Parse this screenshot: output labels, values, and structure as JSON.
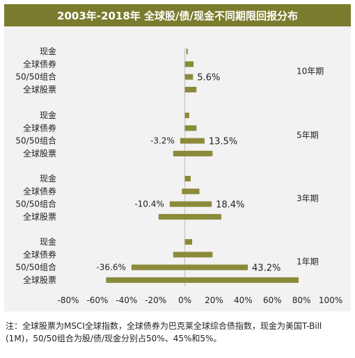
{
  "title": "2003年-2018年 全球股/债/现金不同期限回报分布",
  "note": "注：全球股票为MSCI全球指数，全球债券为巴克莱全球综合债指数，现金为美国T-Bill (1M)，50/50组合为股/债/现金分别占50%、45%和5%。",
  "colors": {
    "bar": "#8a8a3a",
    "title_bg": "#7b7b2e",
    "panel_bg": "#f2f2f2"
  },
  "chart_data": {
    "type": "bar",
    "orientation": "horizontal (floating ranges, min to max)",
    "title": "2003年-2018年 全球股/债/现金不同期限回报分布",
    "xlim": [
      -0.8,
      1.0
    ],
    "x_ticks": [
      "-80%",
      "-60%",
      "-40%",
      "-20%",
      "0%",
      "20%",
      "40%",
      "60%",
      "80%",
      "100%"
    ],
    "grid": false,
    "groups": [
      {
        "label": "10年期",
        "categories": [
          "现金",
          "全球债券",
          "50/50组合",
          "全球股票"
        ],
        "ranges": [
          [
            0.01,
            0.02
          ],
          [
            0.0,
            0.06
          ],
          [
            0.0,
            0.056
          ],
          [
            0.0,
            0.08
          ]
        ],
        "annotations": [
          {
            "category": "50/50组合",
            "side": "right",
            "text": "5.6%"
          }
        ]
      },
      {
        "label": "5年期",
        "categories": [
          "现金",
          "全球债券",
          "50/50组合",
          "全球股票"
        ],
        "ranges": [
          [
            0.0,
            0.03
          ],
          [
            0.0,
            0.08
          ],
          [
            -0.032,
            0.135
          ],
          [
            -0.08,
            0.19
          ]
        ],
        "annotations": [
          {
            "category": "50/50组合",
            "side": "left",
            "text": "-3.2%"
          },
          {
            "category": "50/50组合",
            "side": "right",
            "text": "13.5%"
          }
        ]
      },
      {
        "label": "3年期",
        "categories": [
          "现金",
          "全球债券",
          "50/50组合",
          "全球股票"
        ],
        "ranges": [
          [
            0.0,
            0.04
          ],
          [
            -0.02,
            0.1
          ],
          [
            -0.104,
            0.184
          ],
          [
            -0.18,
            0.25
          ]
        ],
        "annotations": [
          {
            "category": "50/50组合",
            "side": "left",
            "text": "-10.4%"
          },
          {
            "category": "50/50组合",
            "side": "right",
            "text": "18.4%"
          }
        ]
      },
      {
        "label": "1年期",
        "categories": [
          "现金",
          "全球债券",
          "50/50组合",
          "全球股票"
        ],
        "ranges": [
          [
            0.0,
            0.05
          ],
          [
            -0.08,
            0.19
          ],
          [
            -0.366,
            0.432
          ],
          [
            -0.54,
            0.78
          ]
        ],
        "annotations": [
          {
            "category": "50/50组合",
            "side": "left",
            "text": "-36.6%"
          },
          {
            "category": "50/50组合",
            "side": "right",
            "text": "43.2%"
          }
        ]
      }
    ]
  }
}
